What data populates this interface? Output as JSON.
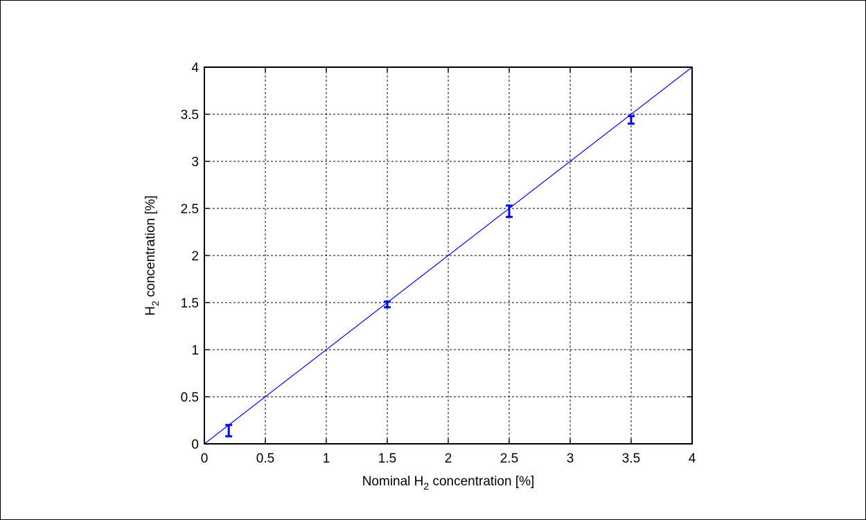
{
  "chart_data": {
    "type": "scatter",
    "xlabel_parts": [
      "Nominal H",
      "2",
      " concentration [%]"
    ],
    "ylabel_parts": [
      "H",
      "2",
      " concentration [%]"
    ],
    "xlim": [
      0,
      4
    ],
    "ylim": [
      0,
      4
    ],
    "xticks": [
      0,
      0.5,
      1,
      1.5,
      2,
      2.5,
      3,
      3.5,
      4
    ],
    "yticks": [
      0,
      0.5,
      1,
      1.5,
      2,
      2.5,
      3,
      3.5,
      4
    ],
    "xtick_labels": [
      "0",
      "0.5",
      "1",
      "1.5",
      "2",
      "2.5",
      "3",
      "3.5",
      "4"
    ],
    "ytick_labels": [
      "0",
      "0.5",
      "1",
      "1.5",
      "2",
      "2.5",
      "3",
      "3.5",
      "4"
    ],
    "grid": true,
    "series": [
      {
        "type": "errorbar",
        "color": "#0000ff",
        "x": [
          0.2,
          1.5,
          2.5,
          3.5
        ],
        "y": [
          0.14,
          1.48,
          2.47,
          3.44
        ],
        "err": [
          0.06,
          0.03,
          0.06,
          0.04
        ]
      }
    ],
    "reference_line": {
      "x": [
        0,
        4
      ],
      "y": [
        0,
        4
      ],
      "color": "#0000ff"
    }
  }
}
